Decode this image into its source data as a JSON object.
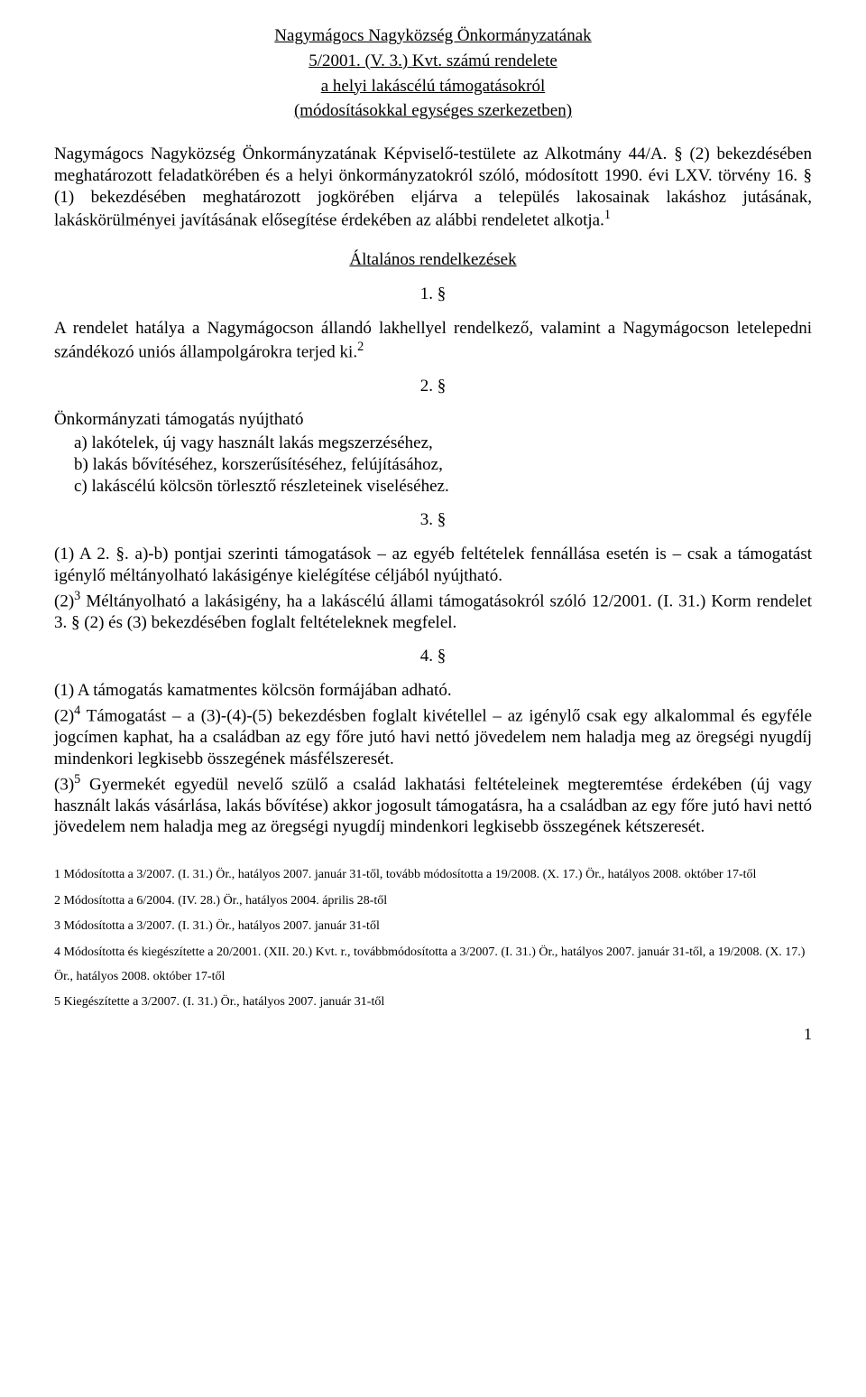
{
  "title": {
    "line1": "Nagymágocs Nagyközség Önkormányzatának",
    "line2": "5/2001. (V. 3.) Kvt. számú rendelete",
    "line3": "a helyi lakáscélú támogatásokról",
    "line4": "(módosításokkal egységes szerkezetben)"
  },
  "preamble": "Nagymágocs Nagyközség Önkormányzatának Képviselő-testülete az Alkotmány 44/A. § (2) bekezdésében meghatározott feladatkörében és a helyi önkormányzatokról szóló, módosított 1990. évi LXV. törvény 16. § (1) bekezdésében meghatározott jogkörében eljárva a település lakosainak lakáshoz jutásának, lakáskörülményei javításának elősegítése érdekében az alábbi rendeletet alkotja.",
  "preamble_fn": "1",
  "general_heading": "Általános rendelkezések",
  "s1": {
    "num": "1. §",
    "body": "A rendelet hatálya a Nagymágocson állandó lakhellyel rendelkező, valamint a Nagymágocson letelepedni szándékozó uniós állampolgárokra terjed ki.",
    "fn": "2"
  },
  "s2": {
    "num": "2. §",
    "lead": "Önkormányzati támogatás nyújtható",
    "a": "a) lakótelek, új vagy használt lakás megszerzéséhez,",
    "b": "b) lakás bővítéséhez, korszerűsítéséhez, felújításához,",
    "c": "c) lakáscélú kölcsön törlesztő részleteinek viseléséhez."
  },
  "s3": {
    "num": "3. §",
    "para1": "(1) A 2. §. a)-b) pontjai szerinti támogatások – az egyéb feltételek fennállása esetén is – csak a támogatást igénylő méltányolható lakásigénye kielégítése céljából nyújtható.",
    "para2_pre": "(2)",
    "para2_fn": "3",
    "para2_body": " Méltányolható a lakásigény, ha a lakáscélú állami támogatásokról szóló 12/2001. (I. 31.) Korm rendelet 3. § (2) és (3) bekezdésében foglalt feltételeknek megfelel."
  },
  "s4": {
    "num": "4. §",
    "para1": "(1) A támogatás kamatmentes kölcsön formájában adható.",
    "para2_pre": "(2)",
    "para2_fn": "4",
    "para2_body": " Támogatást – a (3)-(4)-(5) bekezdésben foglalt kivétellel – az igénylő csak egy alkalommal és egyféle jogcímen kaphat, ha a családban az egy főre jutó havi nettó jövedelem nem haladja meg az öregségi nyugdíj mindenkori legkisebb összegének másfélszeresét.",
    "para3_pre": "(3)",
    "para3_fn": "5",
    "para3_body": " Gyermekét egyedül nevelő szülő a család lakhatási feltételeinek megteremtése érdekében (új vagy használt lakás vásárlása, lakás bővítése) akkor jogosult támogatásra, ha a családban az egy főre jutó havi nettó jövedelem nem haladja meg az öregségi nyugdíj mindenkori legkisebb összegének kétszeresét."
  },
  "footnotes": {
    "f1": "1 Módosította a 3/2007. (I. 31.) Ör., hatályos 2007. január 31-től, tovább módosította a 19/2008. (X. 17.) Ör., hatályos 2008. október 17-től",
    "f2": "2 Módosította a 6/2004. (IV. 28.) Ör., hatályos 2004. április 28-től",
    "f3": "3 Módosította a 3/2007. (I. 31.) Ör., hatályos 2007. január 31-től",
    "f4": "4 Módosította és kiegészítette a 20/2001. (XII. 20.) Kvt. r., továbbmódosította a 3/2007. (I. 31.) Ör., hatályos 2007. január 31-től, a 19/2008. (X. 17.) Ör., hatályos 2008. október 17-től",
    "f5": "5 Kiegészítette a 3/2007. (I. 31.) Ör., hatályos 2007. január 31-től"
  },
  "page_number": "1"
}
